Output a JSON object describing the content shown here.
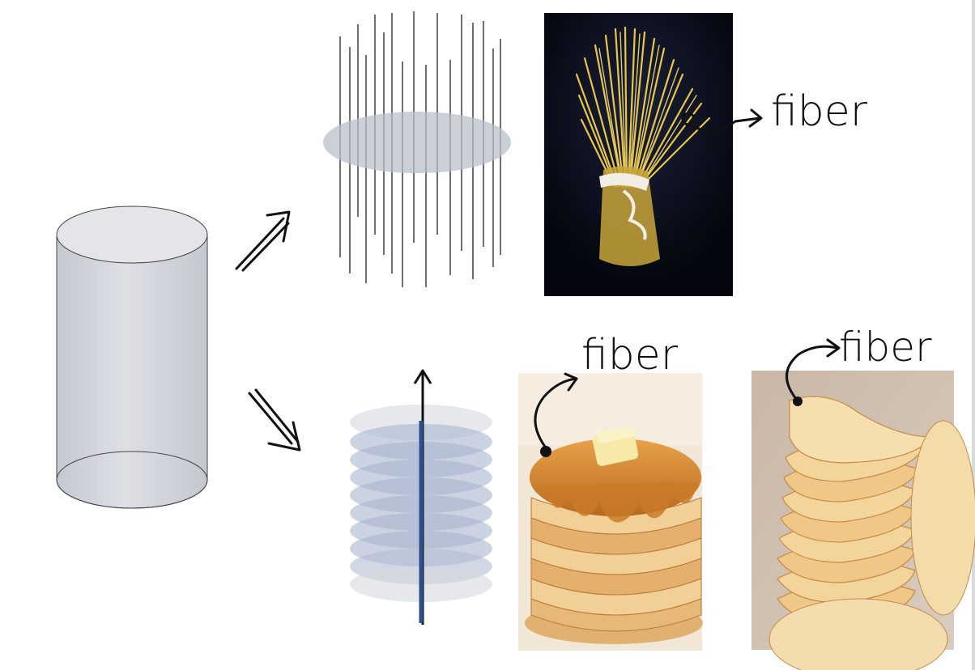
{
  "labels": {
    "spaghetti_fiber": "fiber",
    "pancake_fiber": "fiber",
    "chips_fiber": "fiber"
  },
  "icons": {
    "cylinder": "cylinder-icon",
    "arrow_up": "double-arrow-up-right-icon",
    "arrow_down": "double-arrow-down-right-icon",
    "vertical_lines": "vertical-fibers-icon",
    "stacked_disks": "stacked-disks-icon"
  },
  "colors": {
    "cylinder_fill": "#d3d6dc",
    "disk_gray": "#c7ccd5",
    "stack_blue": "#9aa8c8",
    "axis_blue": "#2b4f8f",
    "ink": "#111111",
    "photo_bg": "#0b0f1e"
  }
}
